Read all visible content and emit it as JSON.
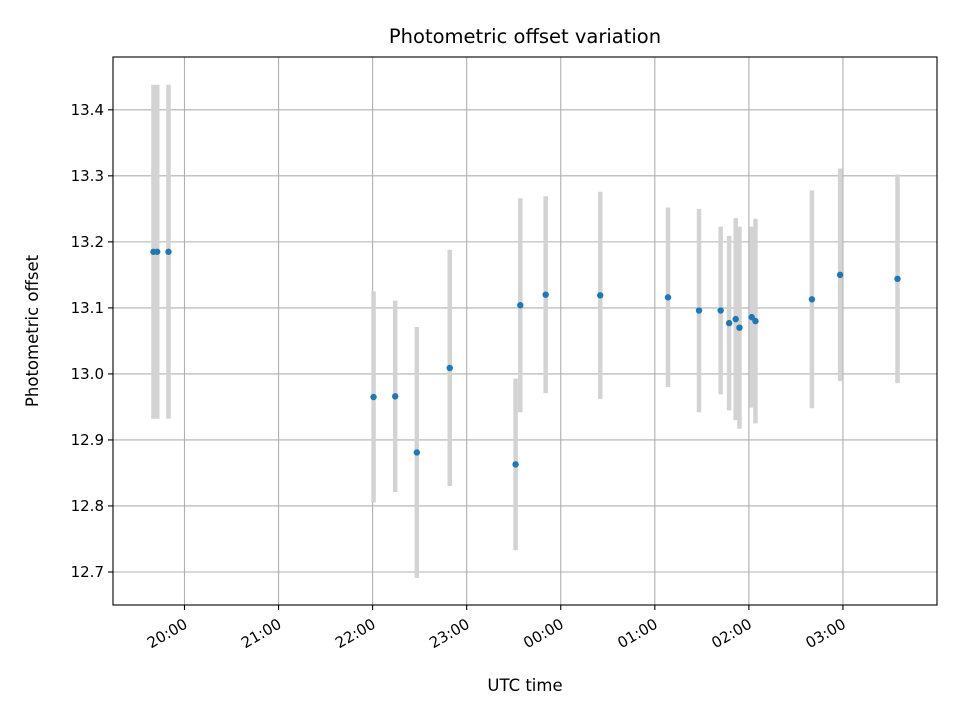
{
  "chart_data": {
    "type": "scatter",
    "title": "Photometric offset variation",
    "xlabel": "UTC time",
    "ylabel": "Photometric offset",
    "x_unit": "UTC time (hours, past midnight continues beyond 24)",
    "xlim": [
      19.24,
      28.0
    ],
    "ylim": [
      12.65,
      13.48
    ],
    "grid": true,
    "x_ticks": [
      {
        "value": 20,
        "label": "20:00"
      },
      {
        "value": 21,
        "label": "21:00"
      },
      {
        "value": 22,
        "label": "22:00"
      },
      {
        "value": 23,
        "label": "23:00"
      },
      {
        "value": 24,
        "label": "00:00"
      },
      {
        "value": 25,
        "label": "01:00"
      },
      {
        "value": 26,
        "label": "02:00"
      },
      {
        "value": 27,
        "label": "03:00"
      }
    ],
    "y_ticks": [
      {
        "value": 12.7,
        "label": "12.7"
      },
      {
        "value": 12.8,
        "label": "12.8"
      },
      {
        "value": 12.9,
        "label": "12.9"
      },
      {
        "value": 13.0,
        "label": "13.0"
      },
      {
        "value": 13.1,
        "label": "13.1"
      },
      {
        "value": 13.2,
        "label": "13.2"
      },
      {
        "value": 13.3,
        "label": "13.3"
      },
      {
        "value": 13.4,
        "label": "13.4"
      }
    ],
    "marker_color": "#1f77b4",
    "errorbar_color": "#d3d3d3",
    "points": [
      {
        "x": 19.67,
        "y": 13.185,
        "yerr": 0.253
      },
      {
        "x": 19.71,
        "y": 13.185,
        "yerr": 0.253
      },
      {
        "x": 19.83,
        "y": 13.185,
        "yerr": 0.253
      },
      {
        "x": 22.01,
        "y": 12.965,
        "yerr": 0.16
      },
      {
        "x": 22.24,
        "y": 12.966,
        "yerr": 0.145
      },
      {
        "x": 22.47,
        "y": 12.881,
        "yerr": 0.19
      },
      {
        "x": 22.82,
        "y": 13.009,
        "yerr": 0.179
      },
      {
        "x": 23.52,
        "y": 12.863,
        "yerr": 0.13
      },
      {
        "x": 23.57,
        "y": 13.104,
        "yerr": 0.162
      },
      {
        "x": 23.84,
        "y": 13.12,
        "yerr": 0.149
      },
      {
        "x": 24.42,
        "y": 13.119,
        "yerr": 0.157
      },
      {
        "x": 25.14,
        "y": 13.116,
        "yerr": 0.136
      },
      {
        "x": 25.47,
        "y": 13.096,
        "yerr": 0.154
      },
      {
        "x": 25.7,
        "y": 13.096,
        "yerr": 0.127
      },
      {
        "x": 25.79,
        "y": 13.077,
        "yerr": 0.132
      },
      {
        "x": 25.86,
        "y": 13.083,
        "yerr": 0.153
      },
      {
        "x": 25.9,
        "y": 13.07,
        "yerr": 0.153
      },
      {
        "x": 26.03,
        "y": 13.086,
        "yerr": 0.137
      },
      {
        "x": 26.07,
        "y": 13.08,
        "yerr": 0.155
      },
      {
        "x": 26.67,
        "y": 13.113,
        "yerr": 0.165
      },
      {
        "x": 26.97,
        "y": 13.15,
        "yerr": 0.161
      },
      {
        "x": 27.58,
        "y": 13.144,
        "yerr": 0.158
      }
    ]
  }
}
